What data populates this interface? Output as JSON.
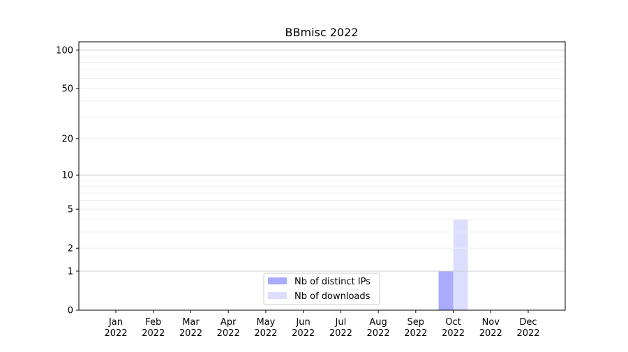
{
  "chart_data": {
    "type": "bar",
    "title": "BBmisc 2022",
    "xlabel": "",
    "ylabel": "",
    "yscale": "log(1+y)",
    "ylim": [
      0,
      116
    ],
    "yticks": [
      0,
      1,
      2,
      5,
      10,
      20,
      50,
      100
    ],
    "ytick_labels": [
      "0",
      "1",
      "2",
      "5",
      "10",
      "20",
      "50",
      "100"
    ],
    "grid": true,
    "legend_position": "bottom-center",
    "categories": [
      "Jan\n2022",
      "Feb\n2022",
      "Mar\n2022",
      "Apr\n2022",
      "May\n2022",
      "Jun\n2022",
      "Jul\n2022",
      "Aug\n2022",
      "Sep\n2022",
      "Oct\n2022",
      "Nov\n2022",
      "Dec\n2022"
    ],
    "series": [
      {
        "name": "Nb of distinct IPs",
        "color": "#aaaaff",
        "values": [
          0,
          0,
          0,
          0,
          0,
          0,
          0,
          0,
          0,
          1,
          0,
          0
        ]
      },
      {
        "name": "Nb of downloads",
        "color": "#ddddff",
        "values": [
          0,
          0,
          0,
          0,
          0,
          0,
          0,
          0,
          0,
          4,
          0,
          0
        ]
      }
    ]
  }
}
